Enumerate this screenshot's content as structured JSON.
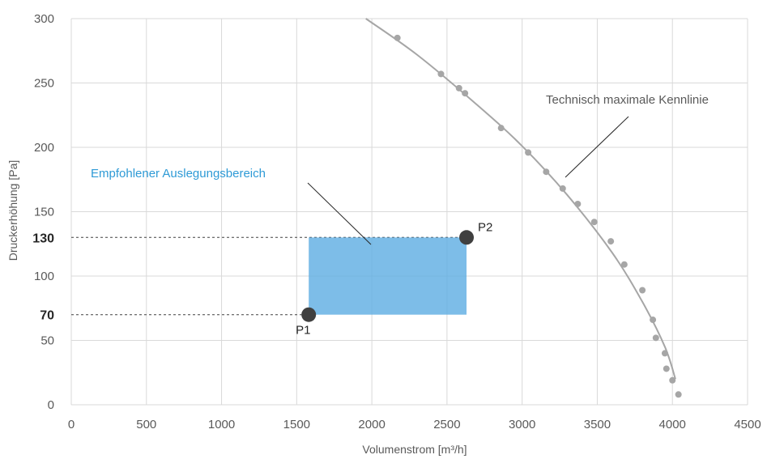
{
  "chart_data": {
    "type": "scatter",
    "xlabel": "Volumenstrom [m³/h]",
    "ylabel": "Druckerhöhung [Pa]",
    "xlim": [
      0,
      4500
    ],
    "ylim": [
      0,
      300
    ],
    "grid": true,
    "x_ticks": [
      "0",
      "500",
      "1000",
      "1500",
      "2000",
      "2500",
      "3000",
      "3500",
      "4000",
      "4500"
    ],
    "y_ticks": [
      "0",
      "50",
      "100",
      "150",
      "200",
      "250",
      "300"
    ],
    "y_extra_ticks": [
      "70",
      "130"
    ],
    "measured_points": [
      {
        "x": 2170,
        "y": 285
      },
      {
        "x": 2460,
        "y": 257
      },
      {
        "x": 2580,
        "y": 246
      },
      {
        "x": 2620,
        "y": 242
      },
      {
        "x": 2860,
        "y": 215
      },
      {
        "x": 3040,
        "y": 196
      },
      {
        "x": 3160,
        "y": 181
      },
      {
        "x": 3270,
        "y": 168
      },
      {
        "x": 3370,
        "y": 156
      },
      {
        "x": 3480,
        "y": 142
      },
      {
        "x": 3590,
        "y": 127
      },
      {
        "x": 3680,
        "y": 109
      },
      {
        "x": 3800,
        "y": 89
      },
      {
        "x": 3870,
        "y": 66
      },
      {
        "x": 3890,
        "y": 52
      },
      {
        "x": 3950,
        "y": 40
      },
      {
        "x": 3960,
        "y": 28
      },
      {
        "x": 4000,
        "y": 19
      },
      {
        "x": 4040,
        "y": 8
      }
    ],
    "curve": {
      "label": "Technisch maximale Kennlinie",
      "points": [
        {
          "x": 1960,
          "y": 300
        },
        {
          "x": 2300,
          "y": 272
        },
        {
          "x": 2700,
          "y": 233
        },
        {
          "x": 3000,
          "y": 201
        },
        {
          "x": 3300,
          "y": 163
        },
        {
          "x": 3600,
          "y": 118
        },
        {
          "x": 3800,
          "y": 80
        },
        {
          "x": 3950,
          "y": 45
        },
        {
          "x": 4020,
          "y": 20
        }
      ]
    },
    "recommended_range": {
      "label": "Empfohlener Auslegungsbereich",
      "x_min": 1580,
      "x_max": 2630,
      "y_min": 70,
      "y_max": 130
    },
    "operating_points": [
      {
        "label": "P1",
        "x": 1580,
        "y": 70
      },
      {
        "label": "P2",
        "x": 2630,
        "y": 130
      }
    ],
    "colors": {
      "range_fill": "#5DADE2",
      "range_label": "#2E9AD6",
      "curve": "#A6A6A6",
      "points": "#A6A6A6",
      "op_point": "#404040",
      "grid": "#D9D9D9"
    }
  }
}
